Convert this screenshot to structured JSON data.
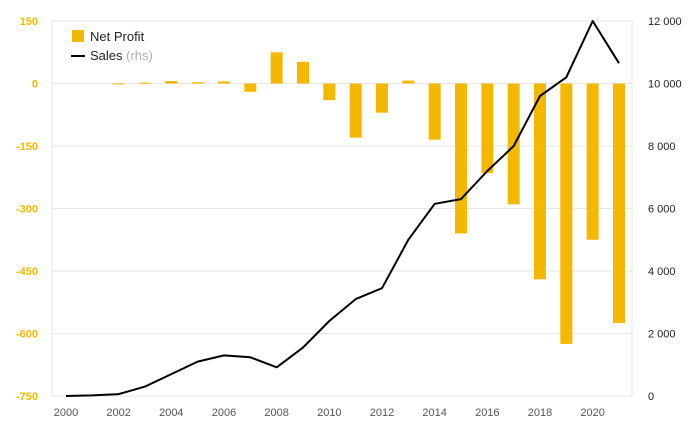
{
  "chart_data": {
    "type": "bar+line",
    "title": "",
    "x": [
      2000,
      2001,
      2002,
      2003,
      2004,
      2005,
      2006,
      2007,
      2008,
      2009,
      2010,
      2011,
      2012,
      2013,
      2014,
      2015,
      2016,
      2017,
      2018,
      2019,
      2020,
      2021
    ],
    "series": [
      {
        "name": "Net Profit",
        "type": "bar",
        "axis": "left",
        "color": "#f5b800",
        "values": [
          0,
          0,
          -1,
          2,
          6,
          3,
          5,
          -20,
          75,
          52,
          -40,
          -130,
          -70,
          7,
          -135,
          -360,
          -215,
          -290,
          -470,
          -625,
          -375,
          -575
        ]
      },
      {
        "name": "Sales",
        "type": "line",
        "axis": "right",
        "color": "#000000",
        "values": [
          0,
          20,
          60,
          300,
          700,
          1100,
          1300,
          1240,
          920,
          1550,
          2400,
          3100,
          3450,
          5000,
          6150,
          6300,
          7200,
          8000,
          9600,
          10200,
          12000,
          10650
        ]
      }
    ],
    "legend": {
      "position": "top-left",
      "items": [
        {
          "label": "Net Profit",
          "note": ""
        },
        {
          "label": "Sales",
          "note": "(rhs)"
        }
      ]
    },
    "left_axis": {
      "min": -750,
      "max": 150,
      "ticks": [
        150,
        0,
        -150,
        -300,
        -450,
        -600,
        -750
      ],
      "tick_labels": [
        "150",
        "0",
        "-150",
        "-300",
        "-450",
        "-600",
        "-750"
      ]
    },
    "right_axis": {
      "min": 0,
      "max": 12000,
      "ticks": [
        12000,
        10000,
        8000,
        6000,
        4000,
        2000,
        0
      ],
      "tick_labels": [
        "12 000",
        "10 000",
        "8 000",
        "6 000",
        "4 000",
        "2 000",
        "0"
      ]
    },
    "x_axis": {
      "ticks": [
        2000,
        2002,
        2004,
        2006,
        2008,
        2010,
        2012,
        2014,
        2016,
        2018,
        2020
      ],
      "tick_labels": [
        "2000",
        "2002",
        "2004",
        "2006",
        "2008",
        "2010",
        "2012",
        "2014",
        "2016",
        "2018",
        "2020"
      ]
    },
    "grid": true
  }
}
